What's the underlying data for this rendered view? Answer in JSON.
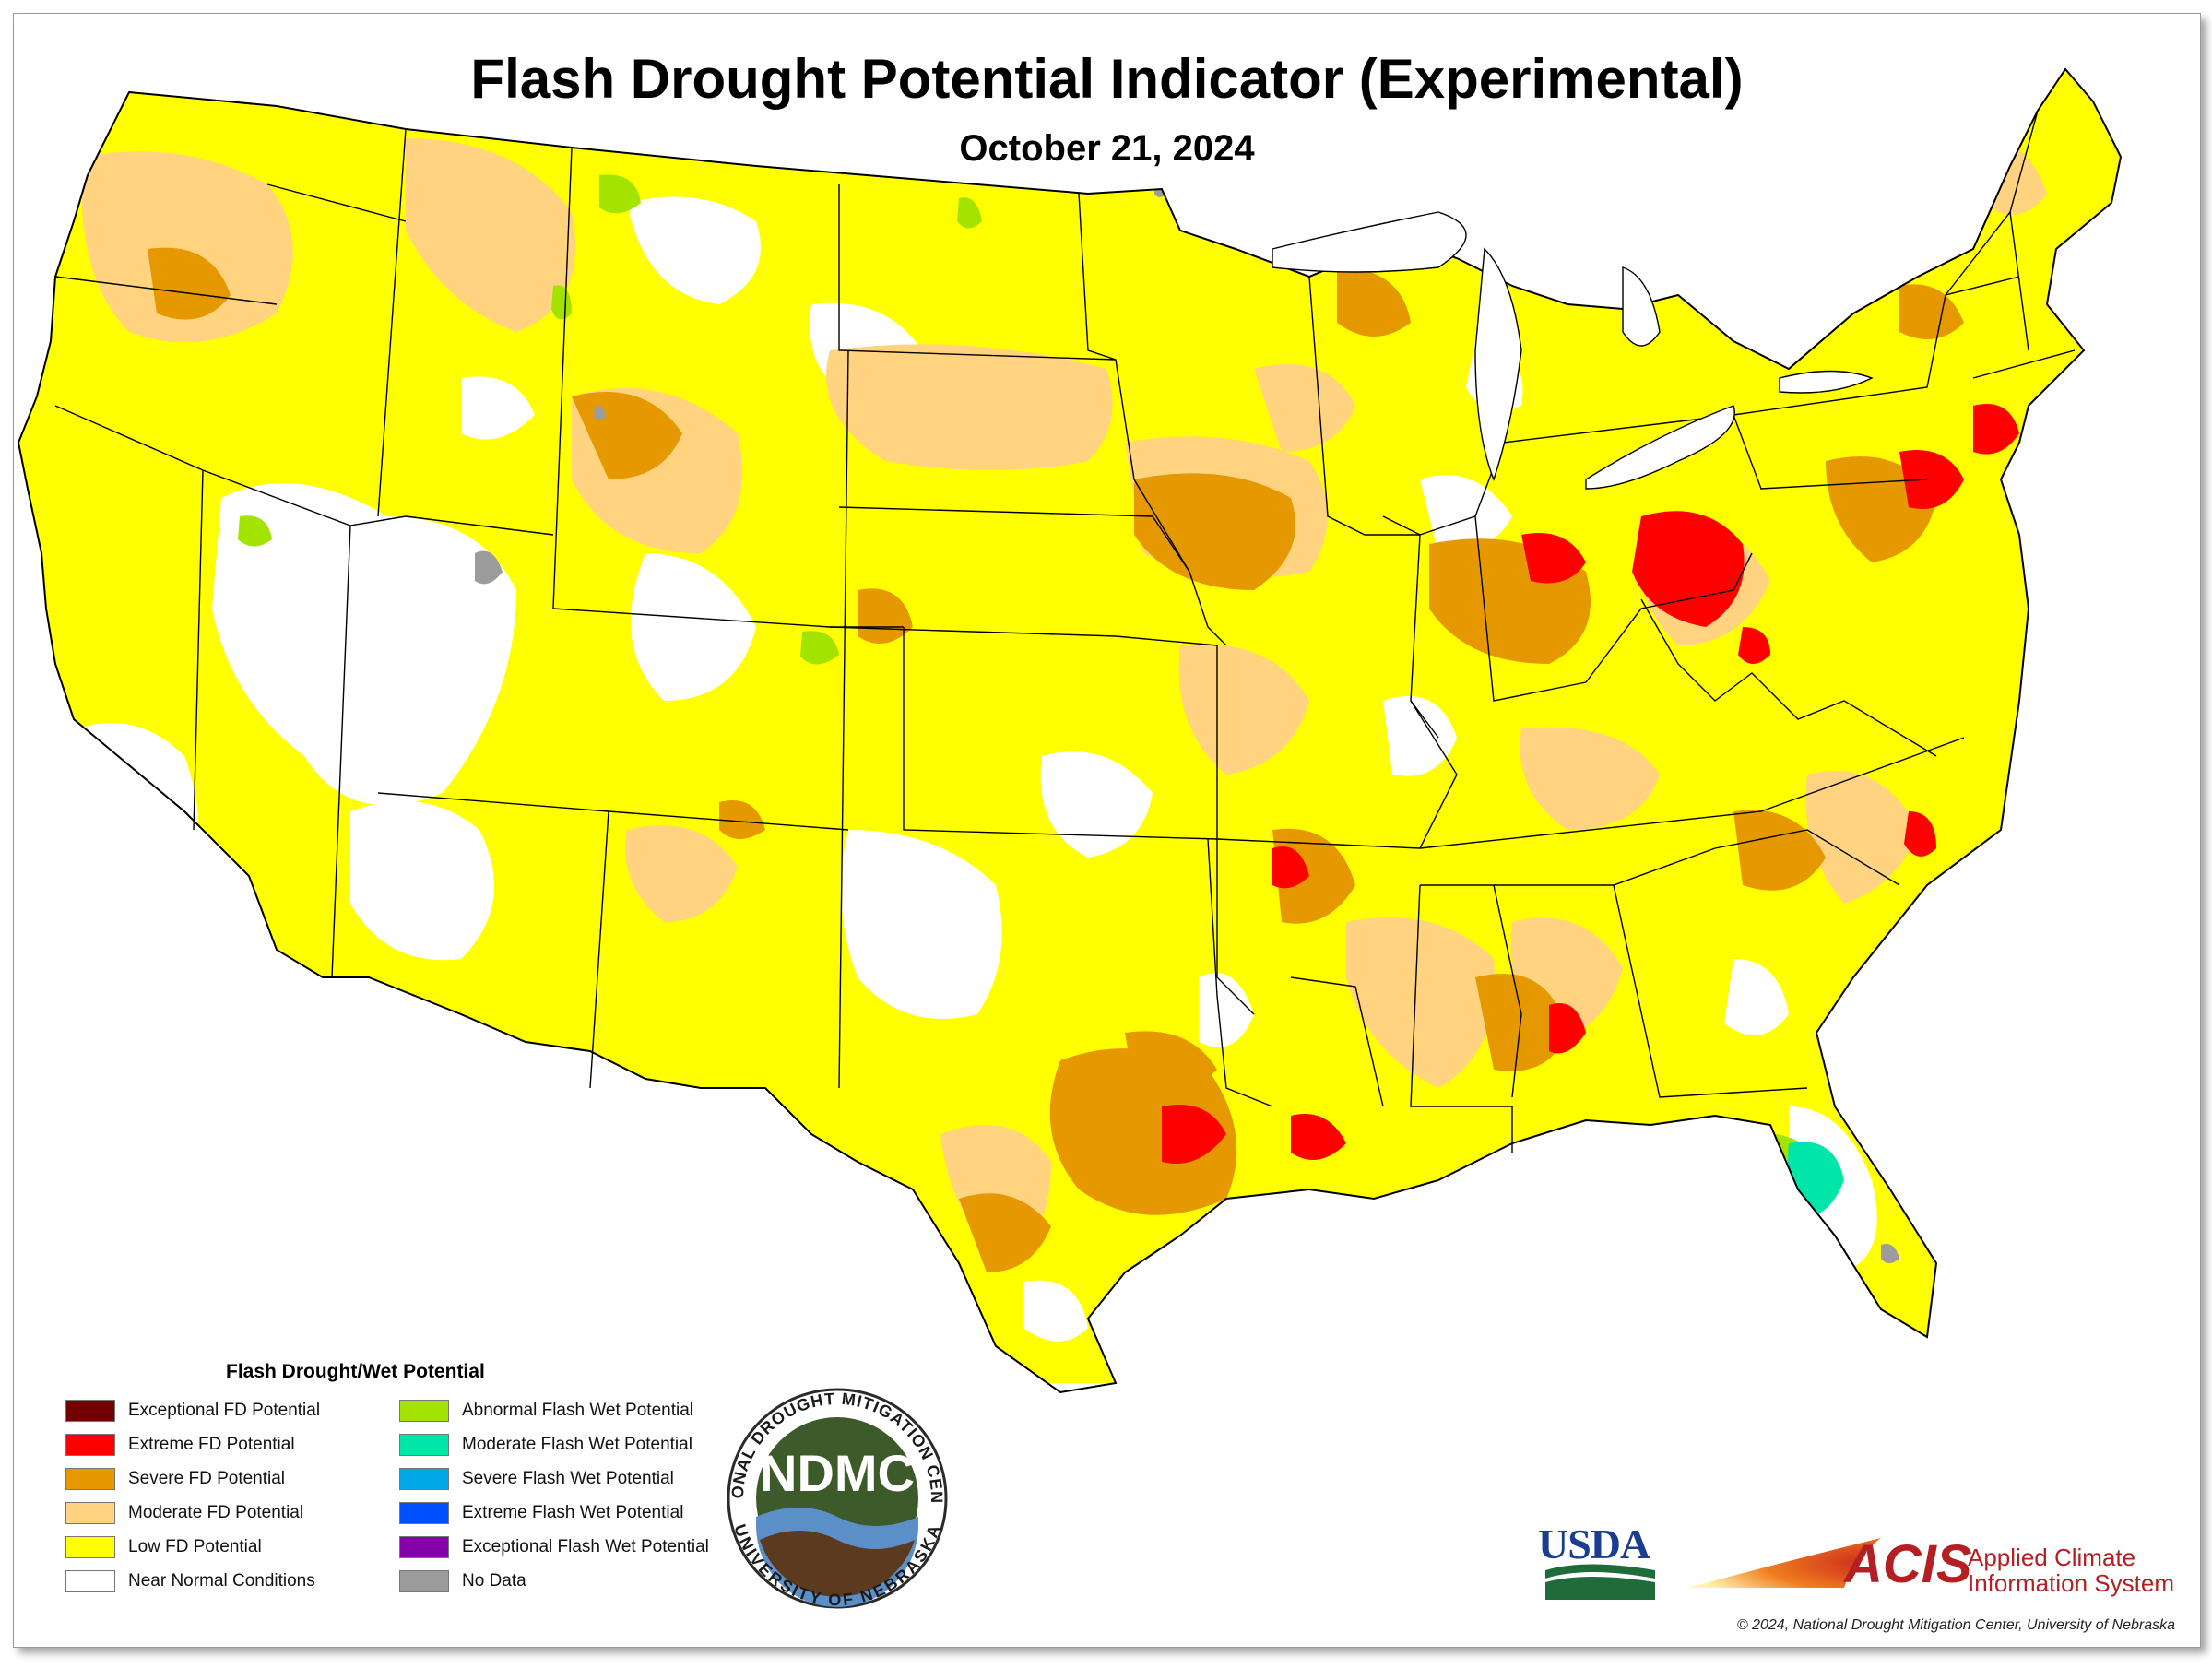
{
  "title": "Flash Drought Potential Indicator (Experimental)",
  "subtitle": "October 21, 2024",
  "legend": {
    "title": "Flash Drought/Wet Potential",
    "left_column": [
      {
        "label": "Exceptional FD Potential",
        "color": "#730000"
      },
      {
        "label": "Extreme FD Potential",
        "color": "#ff0000"
      },
      {
        "label": "Severe FD Potential",
        "color": "#e69800"
      },
      {
        "label": "Moderate FD Potential",
        "color": "#ffd37f"
      },
      {
        "label": "Low FD Potential",
        "color": "#ffff00"
      },
      {
        "label": "Near Normal Conditions",
        "color": "#ffffff"
      }
    ],
    "right_column": [
      {
        "label": "Abnormal Flash Wet Potential",
        "color": "#a3e300"
      },
      {
        "label": "Moderate Flash Wet Potential",
        "color": "#00e6a9"
      },
      {
        "label": "Severe Flash Wet Potential",
        "color": "#00a8e6"
      },
      {
        "label": "Extreme Flash Wet Potential",
        "color": "#0050ff"
      },
      {
        "label": "Exceptional Flash Wet Potential",
        "color": "#8400a8"
      },
      {
        "label": "No Data",
        "color": "#9c9c9c"
      }
    ]
  },
  "logos": {
    "ndmc_ring_top": "NATIONAL DROUGHT MITIGATION CENTER",
    "ndmc_ring_bottom": "UNIVERSITY OF NEBRASKA",
    "ndmc_center": "NDMC",
    "usda": "USDA",
    "acis": "ACIS",
    "acis_name_line1": "Applied Climate",
    "acis_name_line2": "Information System"
  },
  "copyright": "© 2024, National Drought Mitigation Center, University of Nebraska"
}
